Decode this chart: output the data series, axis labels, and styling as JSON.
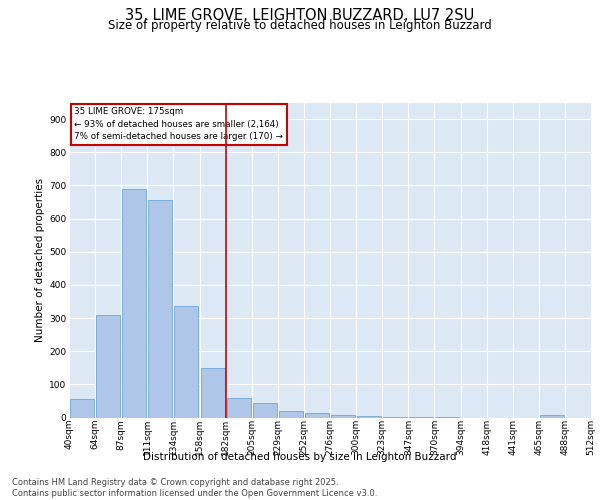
{
  "title1": "35, LIME GROVE, LEIGHTON BUZZARD, LU7 2SU",
  "title2": "Size of property relative to detached houses in Leighton Buzzard",
  "xlabel": "Distribution of detached houses by size in Leighton Buzzard",
  "ylabel": "Number of detached properties",
  "bar_values": [
    55,
    310,
    690,
    655,
    335,
    150,
    60,
    45,
    20,
    15,
    8,
    5,
    3,
    2,
    1,
    0,
    0,
    0,
    8,
    0
  ],
  "categories": [
    "40sqm",
    "64sqm",
    "87sqm",
    "111sqm",
    "134sqm",
    "158sqm",
    "182sqm",
    "205sqm",
    "229sqm",
    "252sqm",
    "276sqm",
    "300sqm",
    "323sqm",
    "347sqm",
    "370sqm",
    "394sqm",
    "418sqm",
    "441sqm",
    "465sqm",
    "488sqm",
    "512sqm"
  ],
  "bar_color": "#aec6e8",
  "bar_edgecolor": "#5a9fd4",
  "background_color": "#dce9f5",
  "vline_color": "#cc0000",
  "vline_x": 5.5,
  "annotation_text": "35 LIME GROVE: 175sqm\n← 93% of detached houses are smaller (2,164)\n7% of semi-detached houses are larger (170) →",
  "annotation_box_color": "#ffffff",
  "annotation_border_color": "#cc0000",
  "ylim": [
    0,
    950
  ],
  "yticks": [
    0,
    100,
    200,
    300,
    400,
    500,
    600,
    700,
    800,
    900
  ],
  "footer_text": "Contains HM Land Registry data © Crown copyright and database right 2025.\nContains public sector information licensed under the Open Government Licence v3.0.",
  "title_fontsize": 10.5,
  "subtitle_fontsize": 8.5,
  "axis_label_fontsize": 7.5,
  "tick_fontsize": 6.5,
  "footer_fontsize": 6.0
}
